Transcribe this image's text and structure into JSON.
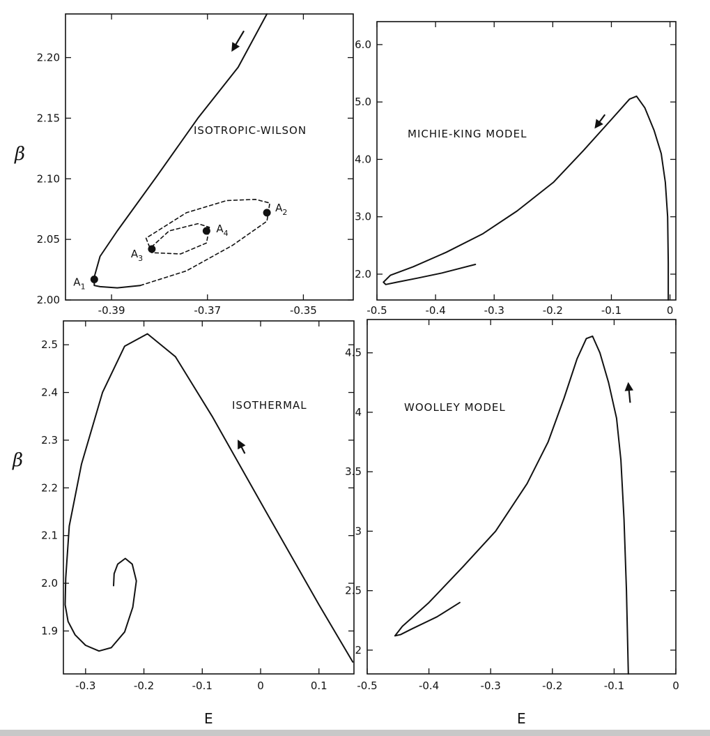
{
  "figure": {
    "ylabel": "β",
    "xlabel": "E"
  },
  "chart_data": [
    {
      "type": "line",
      "title": "ISOTROPIC-WILSON",
      "xlim": [
        -0.3996,
        -0.3396
      ],
      "ylim": [
        2.0,
        2.236
      ],
      "xticks": [
        -0.39,
        -0.37,
        -0.35
      ],
      "xtick_labels": [
        "-0.39",
        "-0.37",
        "-0.35"
      ],
      "yticks": [
        2.0,
        2.05,
        2.1,
        2.15,
        2.2
      ],
      "ytick_labels": [
        "2.00",
        "2.05",
        "2.10",
        "2.15",
        "2.20"
      ],
      "series": [
        {
          "style": "solid",
          "x": [
            -0.3576,
            -0.3636,
            -0.372,
            -0.3804,
            -0.3888,
            -0.3924,
            -0.3936,
            -0.3936,
            -0.3924,
            -0.3888,
            -0.384
          ],
          "y": [
            2.236,
            2.192,
            2.15,
            2.103,
            2.057,
            2.036,
            2.019,
            2.012,
            2.011,
            2.01,
            2.012
          ]
        },
        {
          "style": "dashed",
          "x": [
            -0.384,
            -0.3744,
            -0.3648,
            -0.3576,
            -0.357,
            -0.36,
            -0.366,
            -0.3744,
            -0.3828,
            -0.3816,
            -0.3756,
            -0.3702,
            -0.3696,
            -0.372,
            -0.378,
            -0.3816
          ],
          "y": [
            2.012,
            2.024,
            2.045,
            2.065,
            2.08,
            2.083,
            2.082,
            2.072,
            2.051,
            2.039,
            2.038,
            2.047,
            2.06,
            2.063,
            2.057,
            2.044
          ]
        }
      ],
      "points": [
        {
          "label": "A",
          "sub": "1",
          "x": -0.3936,
          "y": 2.017
        },
        {
          "label": "A",
          "sub": "2",
          "x": -0.3576,
          "y": 2.072
        },
        {
          "label": "A",
          "sub": "3",
          "x": -0.3816,
          "y": 2.042
        },
        {
          "label": "A",
          "sub": "4",
          "x": -0.3702,
          "y": 2.057
        }
      ],
      "arrow": {
        "x": -0.3624,
        "y": 2.222,
        "dx": -0.0024,
        "dy": -0.016
      }
    },
    {
      "type": "line",
      "title": "MICHIE-KING MODEL",
      "xlim": [
        -0.5,
        0.01
      ],
      "ylim": [
        1.55,
        6.4
      ],
      "xticks": [
        -0.5,
        -0.4,
        -0.3,
        -0.2,
        -0.1,
        0
      ],
      "xtick_labels": [
        "-0.5",
        "-0.4",
        "-0.3",
        "-0.2",
        "-0.1",
        "0"
      ],
      "yticks": [
        2.0,
        3.0,
        4.0,
        5.0,
        6.0
      ],
      "ytick_labels": [
        "2.0",
        "3.0",
        "4.0",
        "5.0",
        "6.0"
      ],
      "series": [
        {
          "style": "solid",
          "x": [
            -0.003,
            -0.003,
            -0.004,
            -0.008,
            -0.015,
            -0.027,
            -0.043,
            -0.057,
            -0.069,
            -0.104,
            -0.148,
            -0.199,
            -0.261,
            -0.32,
            -0.382,
            -0.438,
            -0.477,
            -0.489,
            -0.485,
            -0.466,
            -0.431,
            -0.389,
            -0.332
          ],
          "y": [
            1.55,
            2.2,
            3.0,
            3.6,
            4.1,
            4.5,
            4.9,
            5.1,
            5.05,
            4.65,
            4.15,
            3.6,
            3.1,
            2.7,
            2.38,
            2.13,
            1.98,
            1.86,
            1.82,
            1.86,
            1.93,
            2.02,
            2.17
          ]
        }
      ],
      "arrow": {
        "x": -0.111,
        "y": 4.78,
        "dx": -0.016,
        "dy": -0.22
      }
    },
    {
      "type": "line",
      "title": "ISOTHERMAL",
      "xlim": [
        -0.338,
        0.16
      ],
      "ylim": [
        1.81,
        2.55
      ],
      "xticks": [
        -0.3,
        -0.2,
        -0.1,
        0,
        0.1
      ],
      "xtick_labels": [
        "-0.3",
        "-0.2",
        "-0.1",
        "0",
        "0.1"
      ],
      "yticks": [
        1.9,
        2.0,
        2.1,
        2.2,
        2.3,
        2.4,
        2.5
      ],
      "ytick_labels": [
        "1.9",
        "2.0",
        "2.1",
        "2.2",
        "2.3",
        "2.4",
        "2.5"
      ],
      "series": [
        {
          "style": "solid",
          "x": [
            0.158,
            0.1,
            0.0,
            -0.083,
            -0.146,
            -0.194,
            -0.233,
            -0.271,
            -0.307,
            -0.328,
            -0.334,
            -0.335,
            -0.33,
            -0.318,
            -0.3,
            -0.277,
            -0.256,
            -0.233,
            -0.219,
            -0.213,
            -0.22,
            -0.232,
            -0.245,
            -0.251,
            -0.252
          ],
          "y": [
            1.835,
            1.955,
            2.17,
            2.35,
            2.475,
            2.523,
            2.497,
            2.4,
            2.25,
            2.12,
            2.01,
            1.955,
            1.92,
            1.892,
            1.87,
            1.858,
            1.865,
            1.898,
            1.95,
            2.005,
            2.04,
            2.052,
            2.04,
            2.02,
            1.995
          ]
        }
      ],
      "arrow": {
        "x": -0.027,
        "y": 2.272,
        "dx": -0.011,
        "dy": 0.026
      }
    },
    {
      "type": "line",
      "title": "WOOLLEY MODEL",
      "xlim": [
        -0.5,
        0.0
      ],
      "ylim": [
        1.8,
        4.78
      ],
      "xticks": [
        -0.5,
        -0.4,
        -0.3,
        -0.2,
        -0.1,
        0
      ],
      "xtick_labels": [
        "-0.5",
        "-0.4",
        "-0.3",
        "-0.2",
        "-0.1",
        "0"
      ],
      "yticks": [
        2,
        2.5,
        3,
        3.5,
        4,
        4.5
      ],
      "ytick_labels": [
        "2",
        "2.5",
        "3",
        "3.5",
        "4",
        "4.5"
      ],
      "series": [
        {
          "style": "solid",
          "x": [
            -0.077,
            -0.08,
            -0.084,
            -0.089,
            -0.096,
            -0.109,
            -0.123,
            -0.135,
            -0.145,
            -0.16,
            -0.181,
            -0.207,
            -0.241,
            -0.292,
            -0.345,
            -0.4,
            -0.443,
            -0.455,
            -0.446,
            -0.427,
            -0.387,
            -0.35
          ],
          "y": [
            1.8,
            2.5,
            3.1,
            3.6,
            3.95,
            4.25,
            4.5,
            4.64,
            4.62,
            4.45,
            4.12,
            3.75,
            3.4,
            3.0,
            2.7,
            2.4,
            2.2,
            2.12,
            2.13,
            2.18,
            2.28,
            2.4
          ]
        }
      ],
      "arrow": {
        "x": -0.074,
        "y": 4.08,
        "dx": -0.003,
        "dy": 0.16
      }
    }
  ]
}
